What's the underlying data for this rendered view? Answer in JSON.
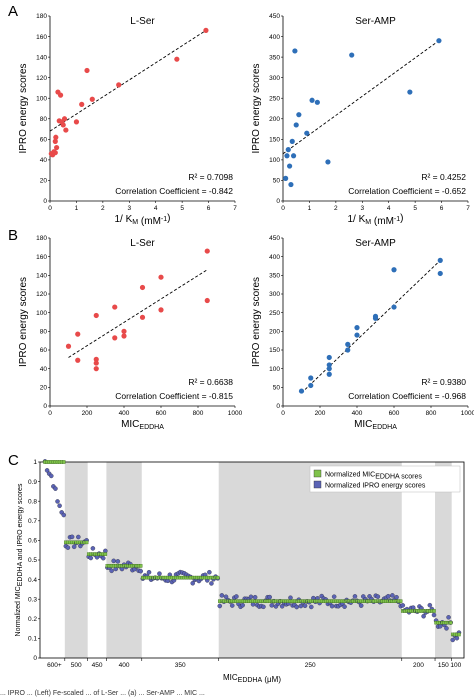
{
  "panel_letters": [
    "A",
    "B",
    "C"
  ],
  "caption_fragment": "... IPRO ... (Left) Fe-scaled ... of L-Ser ... (a) ... Ser-AMP ... MIC ...",
  "chart_data": [
    {
      "id": "A-left",
      "type": "scatter",
      "title": "L-Ser",
      "xlabel": "1/ K_M (mM^-1)",
      "ylabel": "IPRO energy scores",
      "xlim": [
        0,
        7
      ],
      "ylim": [
        0,
        180
      ],
      "xticks": [
        0,
        1,
        2,
        3,
        4,
        5,
        6,
        7
      ],
      "yticks": [
        0,
        20,
        40,
        60,
        80,
        100,
        120,
        140,
        160,
        180
      ],
      "color": "#e84a4a",
      "x": [
        0.05,
        0.1,
        0.15,
        0.2,
        0.2,
        0.22,
        0.25,
        0.3,
        0.35,
        0.4,
        0.45,
        0.5,
        0.55,
        0.6,
        1.0,
        1.2,
        1.4,
        1.6,
        2.6,
        4.8,
        5.9
      ],
      "y": [
        46,
        45,
        48,
        47,
        58,
        62,
        52,
        106,
        78,
        103,
        77,
        74,
        80,
        69,
        77,
        94,
        127,
        99,
        113,
        138,
        166
      ],
      "trendline": {
        "x": [
          0,
          5.9
        ],
        "y": [
          68,
          166
        ]
      },
      "r2": "R² = 0.7098",
      "corr": "Correlation Coefficient = -0.842"
    },
    {
      "id": "A-right",
      "type": "scatter",
      "title": "Ser-AMP",
      "xlabel": "1/ K_M (mM^-1)",
      "ylabel": "IPRO energy scores",
      "xlim": [
        0,
        7
      ],
      "ylim": [
        0,
        450
      ],
      "xticks": [
        0,
        1,
        2,
        3,
        4,
        5,
        6,
        7
      ],
      "yticks": [
        0,
        50,
        100,
        150,
        200,
        250,
        300,
        350,
        400,
        450
      ],
      "color": "#2e6fb8",
      "x": [
        0.1,
        0.15,
        0.2,
        0.25,
        0.3,
        0.35,
        0.4,
        0.45,
        0.5,
        0.6,
        0.9,
        1.1,
        1.3,
        1.7,
        2.6,
        4.8,
        5.9
      ],
      "y": [
        55,
        110,
        125,
        85,
        40,
        145,
        110,
        365,
        185,
        210,
        165,
        245,
        240,
        95,
        355,
        265,
        390
      ],
      "trendline": {
        "x": [
          0,
          5.9
        ],
        "y": [
          115,
          390
        ]
      },
      "r2": "R² = 0.4252",
      "corr": "Correlation Coefficient = -0.652"
    },
    {
      "id": "B-left",
      "type": "scatter",
      "title": "L-Ser",
      "xlabel": "MIC_EDDHA",
      "ylabel": "IPRO energy scores",
      "xlim": [
        0,
        1000
      ],
      "ylim": [
        0,
        180
      ],
      "xticks": [
        0,
        200,
        400,
        600,
        800,
        1000
      ],
      "yticks": [
        0,
        20,
        40,
        60,
        80,
        100,
        120,
        140,
        160,
        180
      ],
      "color": "#e84a4a",
      "x": [
        100,
        150,
        150,
        250,
        250,
        250,
        250,
        350,
        350,
        400,
        400,
        500,
        500,
        600,
        600,
        850,
        850
      ],
      "y": [
        64,
        49,
        77,
        97,
        50,
        46,
        40,
        73,
        106,
        80,
        75,
        95,
        127,
        103,
        138,
        113,
        166
      ],
      "trendline": {
        "x": [
          100,
          850
        ],
        "y": [
          52,
          146
        ]
      },
      "r2": "R² = 0.6638",
      "corr": "Correlation Coefficient = -0.815"
    },
    {
      "id": "B-right",
      "type": "scatter",
      "title": "Ser-AMP",
      "xlabel": "MIC_EDDHA",
      "ylabel": "IPRO energy scores",
      "xlim": [
        0,
        1000
      ],
      "ylim": [
        0,
        450
      ],
      "xticks": [
        0,
        200,
        400,
        600,
        800,
        1000
      ],
      "yticks": [
        0,
        50,
        100,
        150,
        200,
        250,
        300,
        350,
        400,
        450
      ],
      "color": "#2e6fb8",
      "x": [
        100,
        150,
        150,
        250,
        250,
        250,
        250,
        350,
        350,
        400,
        400,
        500,
        500,
        600,
        600,
        850,
        850
      ],
      "y": [
        40,
        55,
        75,
        85,
        100,
        110,
        130,
        150,
        165,
        190,
        210,
        235,
        240,
        265,
        365,
        355,
        390
      ],
      "trendline": {
        "x": [
          100,
          850
        ],
        "y": [
          35,
          390
        ]
      },
      "r2": "R² = 0.9380",
      "corr": "Correlation Coefficient = -0.968"
    },
    {
      "id": "C",
      "type": "scatter",
      "xlabel": "MIC_EDDHA (μM)",
      "ylabel": "Normalized MIC_EDDHA and IPRO energy scores",
      "ylim": [
        0,
        1
      ],
      "yticks": [
        0,
        0.1,
        0.2,
        0.3,
        0.4,
        0.5,
        0.6,
        0.7,
        0.8,
        0.9,
        1
      ],
      "n_points": 200,
      "legend": [
        "Normalized MIC_EDDHA scores",
        "Normalized IPRO energy scores"
      ],
      "legend_colors": [
        "#7fc24a",
        "#5b63b5"
      ],
      "group_labels": [
        "600+",
        "500",
        "450",
        "400",
        "350",
        "250",
        "200",
        "150",
        "100"
      ],
      "group_ranges": [
        [
          0,
          10
        ],
        [
          10,
          21
        ],
        [
          21,
          30
        ],
        [
          30,
          47
        ],
        [
          47,
          84
        ],
        [
          84,
          172
        ],
        [
          172,
          188
        ],
        [
          188,
          196
        ],
        [
          196,
          200
        ]
      ],
      "shaded_groups": [
        1,
        3,
        5,
        7
      ],
      "mic_levels": [
        1.0,
        0.59,
        0.53,
        0.47,
        0.41,
        0.29,
        0.24,
        0.18,
        0.12
      ],
      "ipro_noise": 0.03
    }
  ]
}
